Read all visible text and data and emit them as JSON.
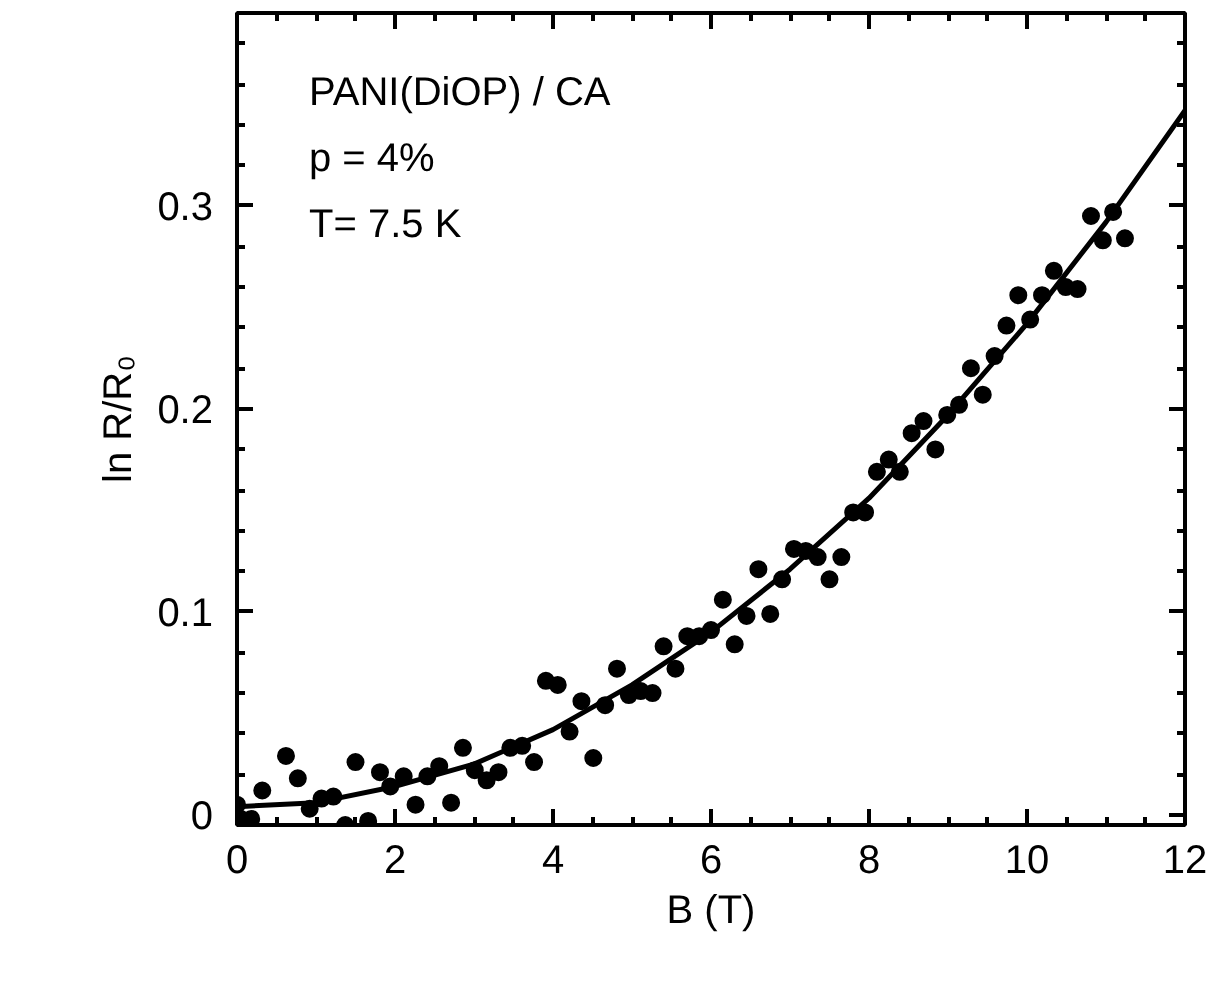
{
  "chart_data": {
    "type": "scatter",
    "xlabel": "B (T)",
    "ylabel": "ln R/R₀",
    "annotations": [
      "PANI(DiOP) / CA",
      "p = 4%",
      "T= 7.5 K"
    ],
    "xlim": [
      0,
      12
    ],
    "ylim": [
      -0.005,
      0.395
    ],
    "grid": false,
    "xticks": [
      0,
      {
        "value": 0.5,
        "label": null
      },
      {
        "value": 1,
        "label": null
      },
      {
        "value": 1.5,
        "label": null
      },
      2,
      {
        "value": 2.5,
        "label": null
      },
      {
        "value": 3,
        "label": null
      },
      {
        "value": 3.5,
        "label": null
      },
      4,
      {
        "value": 4.5,
        "label": null
      },
      {
        "value": 5,
        "label": null
      },
      {
        "value": 5.5,
        "label": null
      },
      6,
      {
        "value": 6.5,
        "label": null
      },
      {
        "value": 7,
        "label": null
      },
      {
        "value": 7.5,
        "label": null
      },
      8,
      {
        "value": 8.5,
        "label": null
      },
      {
        "value": 9,
        "label": null
      },
      {
        "value": 9.5,
        "label": null
      },
      10,
      {
        "value": 10.5,
        "label": null
      },
      {
        "value": 11,
        "label": null
      },
      {
        "value": 11.5,
        "label": null
      },
      12
    ],
    "yticks": [
      0,
      {
        "value": 0.02,
        "label": null
      },
      {
        "value": 0.04,
        "label": null
      },
      {
        "value": 0.06,
        "label": null
      },
      {
        "value": 0.08,
        "label": null
      },
      0.1,
      {
        "value": 0.12,
        "label": null
      },
      {
        "value": 0.14,
        "label": null
      },
      {
        "value": 0.16,
        "label": null
      },
      {
        "value": 0.18,
        "label": null
      },
      0.2,
      {
        "value": 0.22,
        "label": null
      },
      {
        "value": 0.24,
        "label": null
      },
      {
        "value": 0.26,
        "label": null
      },
      {
        "value": 0.28,
        "label": null
      },
      0.3,
      {
        "value": 0.32,
        "label": null
      },
      {
        "value": 0.34,
        "label": null
      },
      {
        "value": 0.36,
        "label": null
      },
      {
        "value": 0.38,
        "label": null
      }
    ],
    "series": [
      {
        "marker": "circle",
        "color": "#000000",
        "x": [
          0,
          0.05,
          0.18,
          0.32,
          0.62,
          0.77,
          0.92,
          1.07,
          1.22,
          1.37,
          1.5,
          1.66,
          1.81,
          1.94,
          2.11,
          2.26,
          2.41,
          2.56,
          2.71,
          2.86,
          3.01,
          3.16,
          3.31,
          3.46,
          3.61,
          3.76,
          3.91,
          4.06,
          4.21,
          4.36,
          4.51,
          4.66,
          4.81,
          4.96,
          5.11,
          5.26,
          5.4,
          5.55,
          5.7,
          5.85,
          6.0,
          6.15,
          6.3,
          6.45,
          6.6,
          6.75,
          6.9,
          7.05,
          7.2,
          7.35,
          7.5,
          7.65,
          7.8,
          7.95,
          8.1,
          8.25,
          8.39,
          8.54,
          8.69,
          8.84,
          8.99,
          9.14,
          9.29,
          9.44,
          9.59,
          9.74,
          9.89,
          10.04,
          10.19,
          10.34,
          10.49,
          10.64,
          10.81,
          10.96,
          11.09,
          11.24
        ],
        "values": [
          0.005,
          -0.002,
          -0.002,
          0.012,
          0.029,
          0.018,
          0.003,
          0.008,
          0.009,
          -0.005,
          0.026,
          -0.003,
          0.021,
          0.014,
          0.019,
          0.005,
          0.019,
          0.024,
          0.006,
          0.033,
          0.022,
          0.017,
          0.021,
          0.033,
          0.034,
          0.026,
          0.066,
          0.064,
          0.041,
          0.056,
          0.028,
          0.054,
          0.072,
          0.059,
          0.061,
          0.06,
          0.083,
          0.072,
          0.088,
          0.088,
          0.091,
          0.106,
          0.084,
          0.098,
          0.121,
          0.099,
          0.116,
          0.131,
          0.13,
          0.127,
          0.116,
          0.127,
          0.149,
          0.149,
          0.169,
          0.175,
          0.169,
          0.188,
          0.194,
          0.18,
          0.197,
          0.202,
          0.22,
          0.207,
          0.226,
          0.241,
          0.256,
          0.244,
          0.256,
          0.268,
          0.26,
          0.259,
          0.295,
          0.283,
          0.297,
          0.284
        ]
      },
      {
        "type": "line",
        "marker": "none",
        "line_style": "solid",
        "color": "#000000",
        "x": [
          0,
          1,
          2,
          3,
          4,
          5,
          6,
          7,
          8,
          9,
          10,
          11,
          12
        ],
        "values": [
          0.004,
          0.006,
          0.014,
          0.025,
          0.042,
          0.064,
          0.09,
          0.121,
          0.156,
          0.197,
          0.242,
          0.292,
          0.347
        ]
      }
    ]
  }
}
